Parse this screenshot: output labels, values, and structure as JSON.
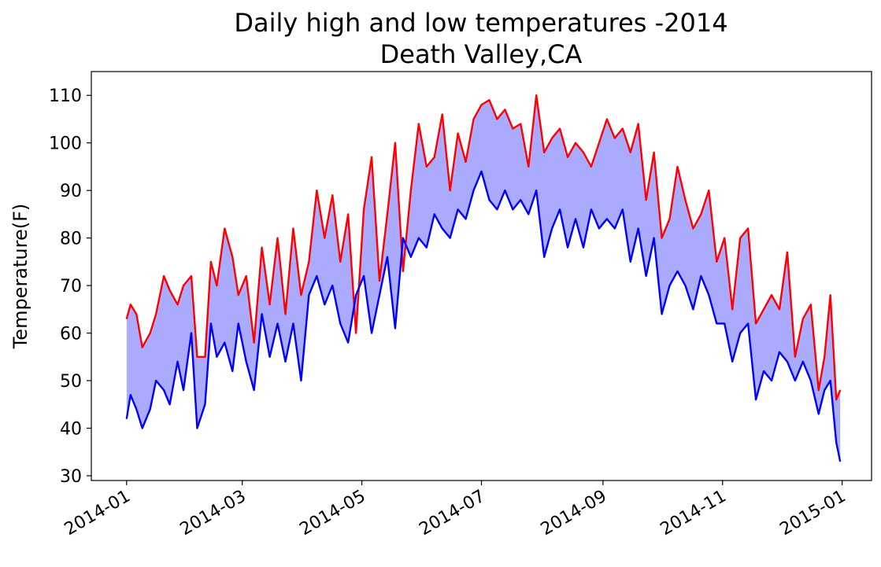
{
  "chart_data": {
    "type": "line",
    "title": "Daily high and low temperatures -2014",
    "subtitle": "Death Valley,CA",
    "xlabel": "",
    "ylabel": "Temperature(F)",
    "xlim": [
      "2013-12-14",
      "2015-01-16"
    ],
    "ylim": [
      29,
      115
    ],
    "x_ticks": [
      "2014-01",
      "2014-03",
      "2014-05",
      "2014-07",
      "2014-09",
      "2014-11",
      "2015-01"
    ],
    "x_tick_dates": [
      "2014-01-01",
      "2014-03-01",
      "2014-05-01",
      "2014-07-01",
      "2014-09-01",
      "2014-11-01",
      "2015-01-01"
    ],
    "y_ticks": [
      30,
      40,
      50,
      60,
      70,
      80,
      90,
      100,
      110
    ],
    "fill_between": {
      "color": "#aaaaff"
    },
    "grid": false,
    "legend": "none",
    "series": [
      {
        "color": "#ff0000",
        "x": [
          "2014-01-01",
          "2014-01-03",
          "2014-01-06",
          "2014-01-09",
          "2014-01-13",
          "2014-01-16",
          "2014-01-20",
          "2014-01-23",
          "2014-01-27",
          "2014-01-30",
          "2014-02-03",
          "2014-02-06",
          "2014-02-10",
          "2014-02-13",
          "2014-02-16",
          "2014-02-20",
          "2014-02-24",
          "2014-02-27",
          "2014-03-03",
          "2014-03-07",
          "2014-03-11",
          "2014-03-15",
          "2014-03-19",
          "2014-03-23",
          "2014-03-27",
          "2014-03-31",
          "2014-04-04",
          "2014-04-08",
          "2014-04-12",
          "2014-04-16",
          "2014-04-20",
          "2014-04-24",
          "2014-04-28",
          "2014-05-02",
          "2014-05-06",
          "2014-05-10",
          "2014-05-14",
          "2014-05-18",
          "2014-05-22",
          "2014-05-26",
          "2014-05-30",
          "2014-06-03",
          "2014-06-07",
          "2014-06-11",
          "2014-06-15",
          "2014-06-19",
          "2014-06-23",
          "2014-06-27",
          "2014-07-01",
          "2014-07-05",
          "2014-07-09",
          "2014-07-13",
          "2014-07-17",
          "2014-07-21",
          "2014-07-25",
          "2014-07-29",
          "2014-08-02",
          "2014-08-06",
          "2014-08-10",
          "2014-08-14",
          "2014-08-18",
          "2014-08-22",
          "2014-08-26",
          "2014-08-30",
          "2014-09-03",
          "2014-09-07",
          "2014-09-11",
          "2014-09-15",
          "2014-09-19",
          "2014-09-23",
          "2014-09-27",
          "2014-10-01",
          "2014-10-05",
          "2014-10-09",
          "2014-10-13",
          "2014-10-17",
          "2014-10-21",
          "2014-10-25",
          "2014-10-29",
          "2014-11-02",
          "2014-11-06",
          "2014-11-10",
          "2014-11-14",
          "2014-11-18",
          "2014-11-22",
          "2014-11-26",
          "2014-11-30",
          "2014-12-04",
          "2014-12-08",
          "2014-12-12",
          "2014-12-16",
          "2014-12-20",
          "2014-12-23",
          "2014-12-26",
          "2014-12-29",
          "2014-12-31"
        ],
        "values": [
          63,
          66,
          64,
          57,
          60,
          64,
          72,
          69,
          66,
          70,
          72,
          55,
          55,
          75,
          70,
          82,
          76,
          68,
          72,
          58,
          78,
          66,
          80,
          64,
          82,
          68,
          75,
          90,
          80,
          89,
          75,
          85,
          60,
          86,
          97,
          71,
          85,
          100,
          73,
          90,
          104,
          95,
          97,
          106,
          90,
          102,
          96,
          105,
          108,
          109,
          105,
          107,
          103,
          104,
          95,
          110,
          98,
          101,
          103,
          97,
          100,
          98,
          95,
          100,
          105,
          101,
          103,
          98,
          104,
          88,
          98,
          80,
          84,
          95,
          88,
          82,
          85,
          90,
          75,
          80,
          65,
          80,
          82,
          62,
          65,
          68,
          65,
          77,
          55,
          63,
          66,
          48,
          55,
          68,
          46,
          48
        ]
      },
      {
        "color": "#0000ff",
        "x": [
          "2014-01-01",
          "2014-01-03",
          "2014-01-06",
          "2014-01-09",
          "2014-01-13",
          "2014-01-16",
          "2014-01-20",
          "2014-01-23",
          "2014-01-27",
          "2014-01-30",
          "2014-02-03",
          "2014-02-06",
          "2014-02-10",
          "2014-02-13",
          "2014-02-16",
          "2014-02-20",
          "2014-02-24",
          "2014-02-27",
          "2014-03-03",
          "2014-03-07",
          "2014-03-11",
          "2014-03-15",
          "2014-03-19",
          "2014-03-23",
          "2014-03-27",
          "2014-03-31",
          "2014-04-04",
          "2014-04-08",
          "2014-04-12",
          "2014-04-16",
          "2014-04-20",
          "2014-04-24",
          "2014-04-28",
          "2014-05-02",
          "2014-05-06",
          "2014-05-10",
          "2014-05-14",
          "2014-05-18",
          "2014-05-22",
          "2014-05-26",
          "2014-05-30",
          "2014-06-03",
          "2014-06-07",
          "2014-06-11",
          "2014-06-15",
          "2014-06-19",
          "2014-06-23",
          "2014-06-27",
          "2014-07-01",
          "2014-07-05",
          "2014-07-09",
          "2014-07-13",
          "2014-07-17",
          "2014-07-21",
          "2014-07-25",
          "2014-07-29",
          "2014-08-02",
          "2014-08-06",
          "2014-08-10",
          "2014-08-14",
          "2014-08-18",
          "2014-08-22",
          "2014-08-26",
          "2014-08-30",
          "2014-09-03",
          "2014-09-07",
          "2014-09-11",
          "2014-09-15",
          "2014-09-19",
          "2014-09-23",
          "2014-09-27",
          "2014-10-01",
          "2014-10-05",
          "2014-10-09",
          "2014-10-13",
          "2014-10-17",
          "2014-10-21",
          "2014-10-25",
          "2014-10-29",
          "2014-11-02",
          "2014-11-06",
          "2014-11-10",
          "2014-11-14",
          "2014-11-18",
          "2014-11-22",
          "2014-11-26",
          "2014-11-30",
          "2014-12-04",
          "2014-12-08",
          "2014-12-12",
          "2014-12-16",
          "2014-12-20",
          "2014-12-23",
          "2014-12-26",
          "2014-12-29",
          "2014-12-31"
        ],
        "values": [
          42,
          47,
          44,
          40,
          44,
          50,
          48,
          45,
          54,
          48,
          60,
          40,
          45,
          62,
          55,
          58,
          52,
          62,
          54,
          48,
          64,
          55,
          62,
          54,
          62,
          50,
          68,
          72,
          66,
          70,
          62,
          58,
          68,
          72,
          60,
          68,
          76,
          61,
          80,
          76,
          80,
          78,
          85,
          82,
          80,
          86,
          84,
          90,
          94,
          88,
          86,
          90,
          86,
          88,
          85,
          90,
          76,
          82,
          86,
          78,
          84,
          78,
          86,
          82,
          84,
          82,
          86,
          75,
          82,
          72,
          80,
          64,
          70,
          73,
          70,
          65,
          72,
          68,
          62,
          62,
          54,
          60,
          62,
          46,
          52,
          50,
          56,
          54,
          50,
          54,
          50,
          43,
          48,
          50,
          37,
          33
        ]
      }
    ]
  }
}
